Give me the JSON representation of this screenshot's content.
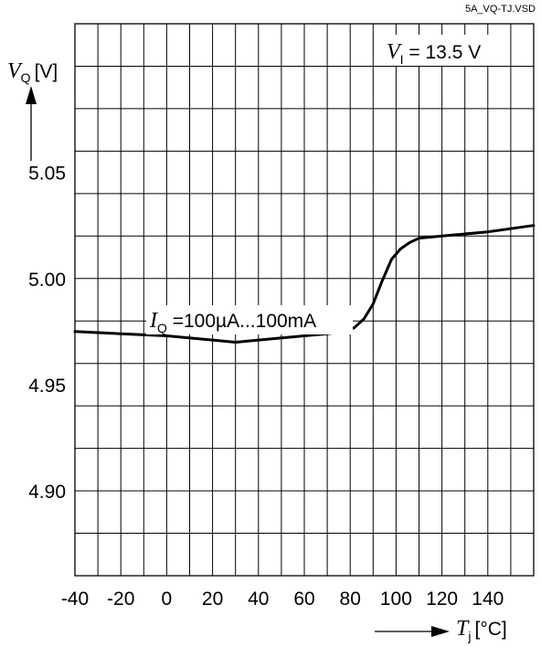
{
  "file_name": "5A_VQ-TJ.VSD",
  "chart_data": {
    "type": "line",
    "x_axis": {
      "symbol": "T",
      "subscript": "j",
      "unit": "[°C]",
      "range": [
        -40,
        160
      ],
      "tick_labels": [
        "-40",
        "-20",
        "0",
        "20",
        "40",
        "60",
        "80",
        "100",
        "120",
        "140"
      ]
    },
    "y_axis": {
      "symbol": "V",
      "subscript": "Q",
      "unit": "[V]",
      "range": [
        4.86,
        5.12
      ],
      "tick_values": [
        4.9,
        4.95,
        5.0,
        5.05
      ],
      "tick_labels": [
        "4.90",
        "4.95",
        "5.00",
        "5.05"
      ]
    },
    "grid": true,
    "annotations": {
      "vi": {
        "symbol": "V",
        "subscript": "I",
        "text": " = 13.5 V"
      },
      "iq": {
        "symbol": "I",
        "subscript": "Q",
        "text": " =100µA...100mA"
      }
    },
    "series": [
      {
        "color": "#000000",
        "x": [
          -40,
          -20,
          0,
          20,
          30,
          40,
          60,
          70,
          78,
          82,
          86,
          90,
          94,
          98,
          102,
          106,
          110,
          120,
          140,
          160
        ],
        "y": [
          4.975,
          4.974,
          4.973,
          4.971,
          4.97,
          4.971,
          4.973,
          4.974,
          4.975,
          4.977,
          4.981,
          4.988,
          4.999,
          5.009,
          5.014,
          5.017,
          5.019,
          5.02,
          5.022,
          5.025
        ]
      }
    ]
  }
}
